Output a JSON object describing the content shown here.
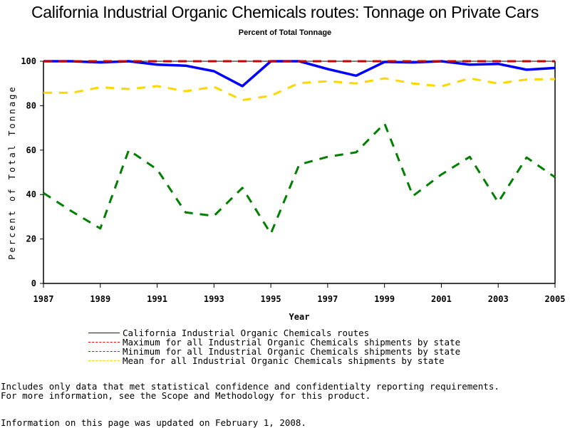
{
  "page": {
    "notes": [
      "Includes only data that met statistical confidence and confidentialty reporting requirements.",
      "For more information, see the Scope and Methodology for this product."
    ],
    "updated": "Information on this page was updated on February 1, 2008."
  },
  "chart_data": {
    "type": "line",
    "title": "California Industrial Organic Chemicals routes: Tonnage on Private Cars",
    "subtitle": "Percent of Total Tonnage",
    "xlabel": "Year",
    "ylabel": "Percent of Total Tonnage",
    "xlim": [
      1987,
      2005
    ],
    "ylim": [
      0,
      100
    ],
    "x_ticks": [
      "1987",
      "1989",
      "1991",
      "1993",
      "1995",
      "1997",
      "1999",
      "2001",
      "2003",
      "2005"
    ],
    "y_ticks": [
      "0",
      "20",
      "40",
      "60",
      "80",
      "100"
    ],
    "grid": false,
    "legend_position": "bottom",
    "x": [
      1987,
      1988,
      1989,
      1990,
      1991,
      1992,
      1993,
      1994,
      1995,
      1996,
      1997,
      1998,
      1999,
      2000,
      2001,
      2002,
      2003,
      2004,
      2005
    ],
    "series": [
      {
        "name": "California Industrial Organic Chemicals routes",
        "color": "#0000ff",
        "style": "solid",
        "values": [
          100,
          100,
          99.5,
          100,
          98.5,
          98,
          95.5,
          88.8,
          100,
          100,
          96.5,
          93.5,
          99.7,
          99.5,
          100,
          98.5,
          98.8,
          96.2,
          97
        ]
      },
      {
        "name": "Maximum for all Industrial Organic Chemicals shipments by state",
        "color": "#cc0000",
        "style": "dashed",
        "values": [
          100,
          100,
          100,
          100,
          100,
          100,
          100,
          100,
          100,
          100,
          100,
          100,
          100,
          100,
          100,
          100,
          100,
          100,
          100
        ]
      },
      {
        "name": "Minimum for all Industrial Organic Chemicals shipments by state",
        "color": "#008000",
        "style": "dashed",
        "values": [
          40.7,
          32.4,
          24.7,
          60,
          51.3,
          32,
          30.4,
          43,
          22.4,
          53.5,
          57,
          59,
          72,
          39.4,
          49,
          57,
          36.5,
          56.7,
          47.8
        ]
      },
      {
        "name": "Mean for all Industrial Organic Chemicals shipments by state",
        "color": "#ffd700",
        "style": "dashed",
        "values": [
          85.8,
          85.8,
          88.3,
          87.5,
          88.8,
          86.5,
          88.5,
          82.5,
          84.5,
          90.2,
          91,
          90,
          92.3,
          90,
          88.7,
          92.3,
          90,
          91.8,
          92
        ]
      }
    ]
  }
}
